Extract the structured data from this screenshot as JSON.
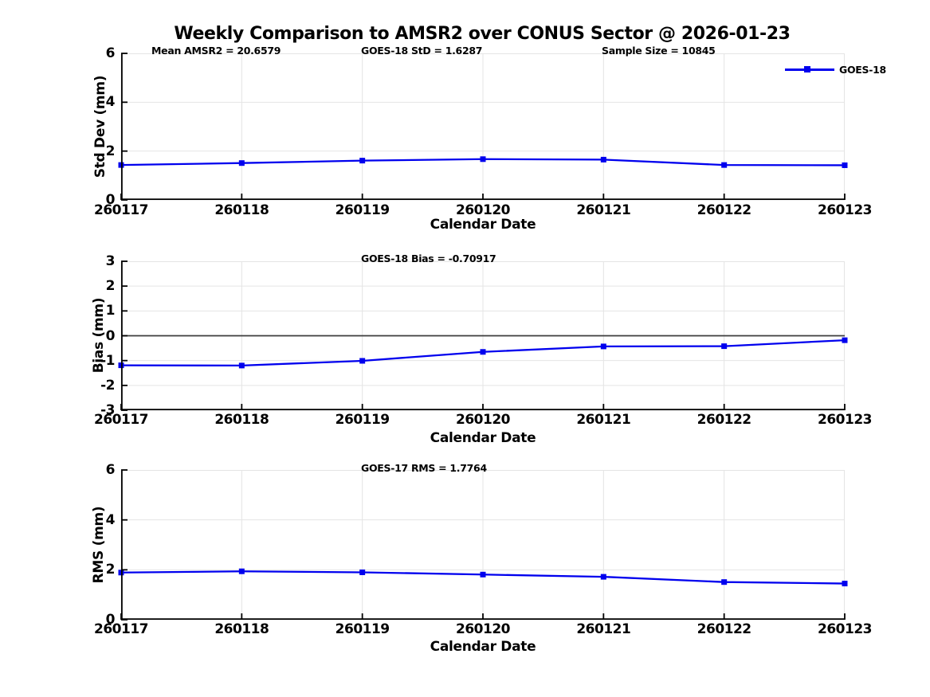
{
  "figure": {
    "title": "Weekly Comparison to AMSR2 over CONUS Sector @ 2026-01-23",
    "background": "#ffffff",
    "accent_color": "#0000ee",
    "grid_color": "#e4e4e4",
    "zero_line_color": "#3c3c3c"
  },
  "legend": {
    "label": "GOES-18",
    "color": "#0000ee",
    "marker": "filled-square",
    "position": "outside-top-right",
    "box": false
  },
  "chart_data": [
    {
      "type": "line",
      "title": "",
      "ylabel": "Std Dev (mm)",
      "xlabel": "Calendar Date",
      "x": [
        "260117",
        "260118",
        "260119",
        "260120",
        "260121",
        "260122",
        "260123"
      ],
      "ylim": [
        0,
        6
      ],
      "yticks": [
        0,
        2,
        4,
        6
      ],
      "grid": true,
      "annotations": [
        "Mean AMSR2 = 20.6579",
        "GOES-18 StD = 1.6287",
        "Sample Size = 10845"
      ],
      "legend_entries": [
        "GOES-18"
      ],
      "series": [
        {
          "name": "GOES-18",
          "color": "#0000ee",
          "marker": "square",
          "values": [
            1.43,
            1.51,
            1.61,
            1.67,
            1.65,
            1.43,
            1.42
          ]
        }
      ]
    },
    {
      "type": "line",
      "title": "",
      "ylabel": "Bias (mm)",
      "xlabel": "Calendar Date",
      "x": [
        "260117",
        "260118",
        "260119",
        "260120",
        "260121",
        "260122",
        "260123"
      ],
      "ylim": [
        -3,
        3
      ],
      "yticks": [
        3,
        2,
        1,
        0,
        -1,
        -2,
        -3
      ],
      "grid": true,
      "zero_line": true,
      "annotations": [
        "GOES-18 Bias  = -0.70917"
      ],
      "series": [
        {
          "name": "GOES-18",
          "color": "#0000ee",
          "marker": "square",
          "values": [
            -1.19,
            -1.2,
            -1.01,
            -0.65,
            -0.43,
            -0.42,
            -0.18
          ]
        }
      ]
    },
    {
      "type": "line",
      "title": "",
      "ylabel": "RMS (mm)",
      "xlabel": "Calendar Date",
      "x": [
        "260117",
        "260118",
        "260119",
        "260120",
        "260121",
        "260122",
        "260123"
      ],
      "ylim": [
        0,
        6
      ],
      "yticks": [
        0,
        2,
        4,
        6
      ],
      "grid": true,
      "annotations": [
        "GOES-17 RMS = 1.7764"
      ],
      "series": [
        {
          "name": "GOES-18",
          "color": "#0000ee",
          "marker": "square",
          "values": [
            1.89,
            1.94,
            1.9,
            1.81,
            1.72,
            1.51,
            1.45
          ]
        }
      ]
    }
  ]
}
